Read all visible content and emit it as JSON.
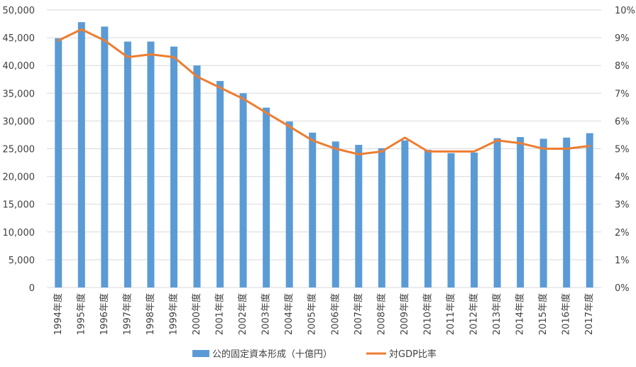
{
  "chart_data": {
    "type": "bar+line",
    "categories": [
      "1994年度",
      "1995年度",
      "1996年度",
      "1997年度",
      "1998年度",
      "1999年度",
      "2000年度",
      "2001年度",
      "2002年度",
      "2003年度",
      "2004年度",
      "2005年度",
      "2006年度",
      "2007年度",
      "2008年度",
      "2009年度",
      "2010年度",
      "2011年度",
      "2012年度",
      "2013年度",
      "2014年度",
      "2015年度",
      "2016年度",
      "2017年度"
    ],
    "series": [
      {
        "name": "公的固定資本形成（十億円）",
        "type": "bar",
        "axis": "left",
        "color": "#5B9BD5",
        "values": [
          44900,
          47800,
          47000,
          44300,
          44300,
          43400,
          40000,
          37200,
          35000,
          32400,
          29900,
          27900,
          26300,
          25700,
          25100,
          26500,
          24800,
          24200,
          24300,
          26900,
          27100,
          26800,
          27000,
          27800
        ]
      },
      {
        "name": "対GDP比率",
        "type": "line",
        "axis": "right",
        "color": "#ED7D31",
        "values": [
          8.9,
          9.3,
          8.9,
          8.3,
          8.4,
          8.3,
          7.6,
          7.2,
          6.8,
          6.3,
          5.8,
          5.3,
          5.0,
          4.8,
          4.9,
          5.4,
          4.9,
          4.9,
          4.9,
          5.3,
          5.2,
          5.0,
          5.0,
          5.1
        ]
      }
    ],
    "y_left": {
      "min": 0,
      "max": 50000,
      "step": 5000,
      "ticks": [
        "0",
        "5,000",
        "10,000",
        "15,000",
        "20,000",
        "25,000",
        "30,000",
        "35,000",
        "40,000",
        "45,000",
        "50,000"
      ]
    },
    "y_right": {
      "min": 0,
      "max": 10,
      "step": 1,
      "ticks": [
        "0%",
        "1%",
        "2%",
        "3%",
        "4%",
        "5%",
        "6%",
        "7%",
        "8%",
        "9%",
        "10%"
      ]
    },
    "grid": true,
    "legend_position": "bottom"
  }
}
